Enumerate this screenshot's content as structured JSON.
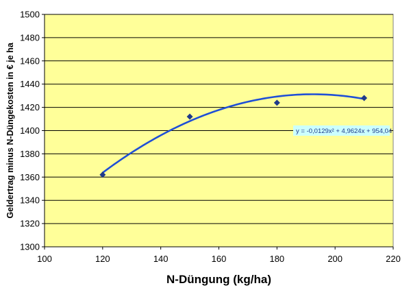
{
  "chart_data": {
    "type": "scatter",
    "xlabel": "N-Düngung (kg/ha)",
    "ylabel": "Geldertrag minus N-Düngekosten in € je ha",
    "xlim": [
      100,
      220
    ],
    "ylim": [
      1300,
      1500
    ],
    "x_ticks": [
      100,
      120,
      140,
      160,
      180,
      200,
      220
    ],
    "y_ticks": [
      1300,
      1320,
      1340,
      1360,
      1380,
      1400,
      1420,
      1440,
      1460,
      1480,
      1500
    ],
    "grid": "horizontal",
    "series": [
      {
        "marker": "diamond",
        "x": [
          120,
          150,
          180,
          210
        ],
        "y": [
          1362,
          1412,
          1424,
          1428
        ]
      }
    ],
    "trendline": {
      "type": "polynomial",
      "order": 2,
      "coefficients": {
        "a": -0.0129,
        "b": 4.9624,
        "c": 954.04
      },
      "x_range": [
        120,
        210
      ],
      "equation_label": "y = -0,0129x² + 4,9624x + 954,04"
    },
    "colors": {
      "plot_background": "#ffff99",
      "gridline": "#000000",
      "marker": "#1f3a8a",
      "trendline": "#1f4fd6",
      "equation_box": "#ccffff"
    }
  }
}
